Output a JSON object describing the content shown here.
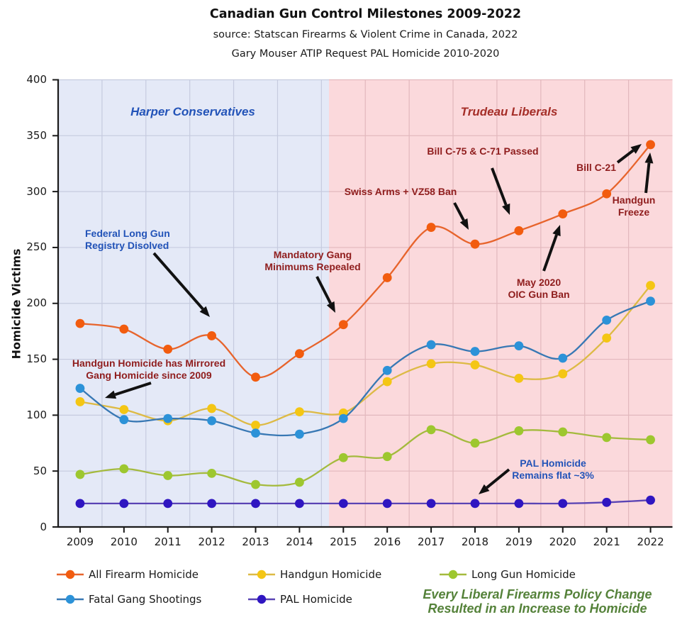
{
  "header": {
    "title": "Canadian Gun Control Milestones 2009-2022",
    "subtitle1": "source: Statscan Firearms & Violent Crime in Canada, 2022",
    "subtitle2": "Gary Mouser ATIP Request PAL Homicide 2010-2020"
  },
  "chart_data": {
    "type": "line",
    "title": "Canadian Gun Control Milestones 2009-2022",
    "xlabel": "",
    "ylabel": "Homicide Victims",
    "ylim": [
      0,
      400
    ],
    "ytick_step": 50,
    "x": [
      2009,
      2010,
      2011,
      2012,
      2013,
      2014,
      2015,
      2016,
      2017,
      2018,
      2019,
      2020,
      2021,
      2022
    ],
    "series": [
      {
        "name": "All Firearm Homicide",
        "line_color": "#e7642c",
        "dot_color": "#f25c0f",
        "values": [
          182,
          177,
          159,
          171,
          134,
          155,
          181,
          223,
          268,
          253,
          265,
          280,
          298,
          342
        ]
      },
      {
        "name": "Handgun Homicide",
        "line_color": "#ddba45",
        "dot_color": "#f4c614",
        "values": [
          112,
          105,
          95,
          106,
          91,
          103,
          102,
          130,
          146,
          145,
          133,
          137,
          169,
          216
        ]
      },
      {
        "name": "Long Gun Homicide",
        "line_color": "#a4ba3d",
        "dot_color": "#9dc72f",
        "values": [
          47,
          52,
          46,
          48,
          38,
          40,
          62,
          63,
          87,
          75,
          86,
          85,
          80,
          78
        ]
      },
      {
        "name": "Fatal Gang Shootings",
        "line_color": "#3878b4",
        "dot_color": "#2c92d8",
        "values": [
          124,
          96,
          97,
          95,
          84,
          83,
          97,
          140,
          163,
          157,
          162,
          151,
          185,
          202
        ]
      },
      {
        "name": "PAL Homicide",
        "line_color": "#5a44b4",
        "dot_color": "#2f16c1",
        "values": [
          21,
          21,
          21,
          21,
          21,
          21,
          21,
          21,
          21,
          21,
          21,
          21,
          22,
          24
        ]
      }
    ],
    "regions": [
      {
        "id": "harper",
        "label": "Harper Conservatives",
        "fill": "#e4e9f7",
        "text_color": "#2253b8"
      },
      {
        "id": "trudeau",
        "label": "Trudeau Liberals",
        "fill": "#fbd9dc",
        "text_color": "#a52e28"
      }
    ],
    "annotations": [
      {
        "id": "federal-long-gun",
        "text": "Federal Long Gun\nRegistry Disolved",
        "color": "#2253b8"
      },
      {
        "id": "handgun-mirrored",
        "text": "Handgun Homicide has Mirrored\nGang Homicide since 2009",
        "color": "#8f1d1d"
      },
      {
        "id": "mandatory-gang",
        "text": "Mandatory Gang\nMinimums Repealed",
        "color": "#8f1d1d"
      },
      {
        "id": "swiss-arms",
        "text": "Swiss Arms + VZ58 Ban",
        "color": "#8f1d1d"
      },
      {
        "id": "bill-c75",
        "text": "Bill C-75 & C-71 Passed",
        "color": "#8f1d1d"
      },
      {
        "id": "bill-c21",
        "text": "Bill C-21",
        "color": "#8f1d1d"
      },
      {
        "id": "handgun-freeze",
        "text": "Handgun\nFreeze",
        "color": "#8f1d1d"
      },
      {
        "id": "may-2020",
        "text": "May 2020\nOIC Gun Ban",
        "color": "#8f1d1d"
      },
      {
        "id": "pal-flat",
        "text": "PAL Homicide\nRemains flat ~3%",
        "color": "#2253b8"
      }
    ],
    "footnote": "Every Liberal Firearms Policy Change\nResulted in an Increase to Homicide",
    "footnote_color": "#55823a"
  }
}
